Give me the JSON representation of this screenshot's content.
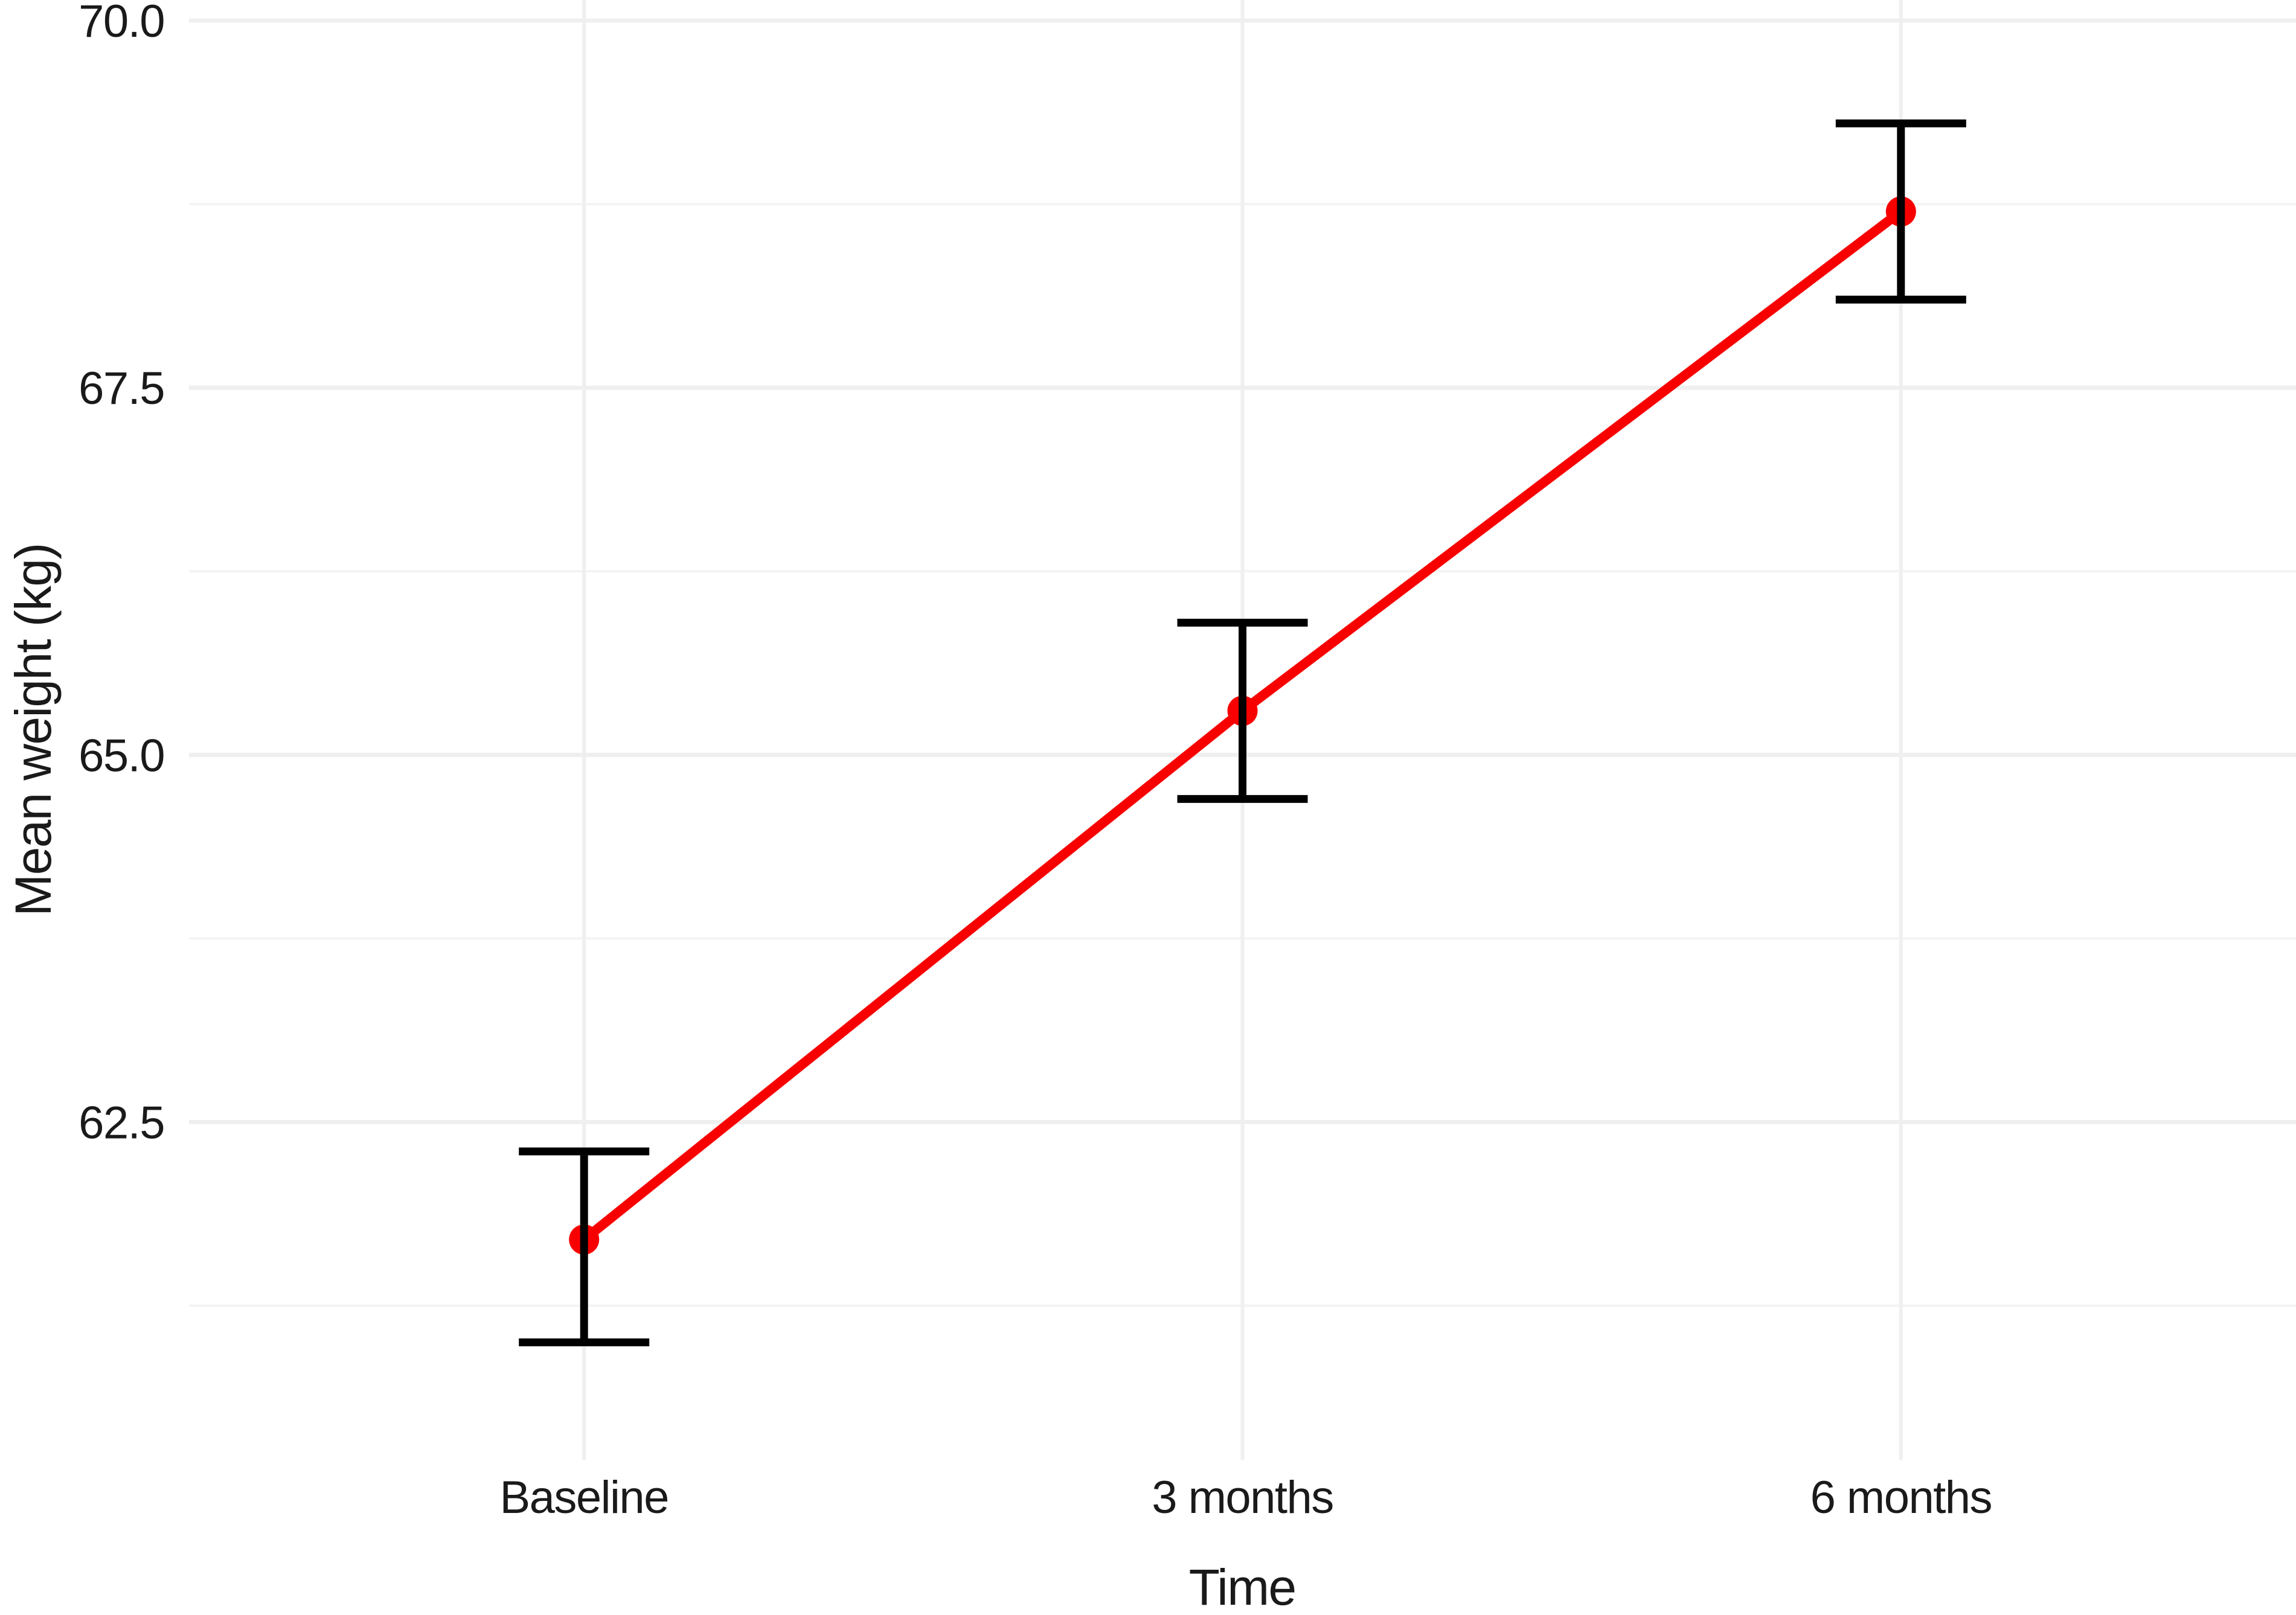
{
  "chart_data": {
    "type": "line",
    "title": "",
    "categories": [
      "Baseline",
      "3 months",
      "6 months"
    ],
    "series": [
      {
        "name": "Mean weight",
        "values": [
          61.7,
          65.3,
          68.7
        ],
        "ci_lower": [
          61.0,
          64.7,
          68.1
        ],
        "ci_upper": [
          62.3,
          65.9,
          69.3
        ]
      }
    ],
    "xlabel": "Time",
    "ylabel": "Mean weight (kg)",
    "yticks": [
      70.0,
      67.5,
      65.0,
      62.5
    ],
    "ytick_labels": [
      "70.0",
      "67.5",
      "65.0",
      "62.5"
    ],
    "yticks_minor": [
      68.75,
      66.25,
      63.75,
      61.25
    ],
    "ylim": [
      60.2,
      70.14
    ],
    "grid": true,
    "legend": false,
    "error_bars": true,
    "colors": {
      "line": "#F80000",
      "point": "#F80000",
      "error_bar": "#000000",
      "grid_major": "#EFEFEF",
      "grid_minor": "#F3F4F4",
      "grid_vertical": "#EFEFEF",
      "text": "#1A1A1A",
      "background": "#FFFFFF"
    }
  }
}
